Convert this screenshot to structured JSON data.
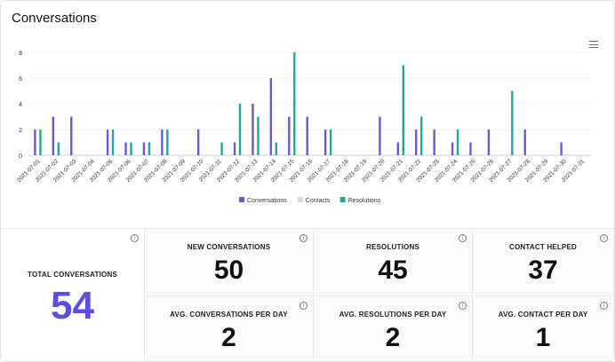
{
  "header": {
    "title": "Conversations"
  },
  "colors": {
    "conversations": "#6a5acd",
    "contacts": "#d9d9d9",
    "resolutions": "#26a69a",
    "accent": "#5a4fe0"
  },
  "chart_data": {
    "type": "bar",
    "categories": [
      "2021-07-01",
      "2021-07-02",
      "2021-07-03",
      "2021-07-04",
      "2021-07-05",
      "2021-07-06",
      "2021-07-07",
      "2021-07-08",
      "2021-07-09",
      "2021-07-10",
      "2021-07-11",
      "2021-07-12",
      "2021-07-13",
      "2021-07-14",
      "2021-07-15",
      "2021-07-16",
      "2021-07-17",
      "2021-07-18",
      "2021-07-19",
      "2021-07-20",
      "2021-07-21",
      "2021-07-22",
      "2021-07-23",
      "2021-07-24",
      "2021-07-25",
      "2021-07-26",
      "2021-07-27",
      "2021-07-28",
      "2021-07-29",
      "2021-07-30",
      "2021-07-31"
    ],
    "series": [
      {
        "name": "Conversations",
        "values": [
          2,
          3,
          3,
          0,
          2,
          1,
          1,
          2,
          0,
          2,
          0,
          1,
          4,
          6,
          3,
          3,
          2,
          0,
          0,
          3,
          1,
          2,
          2,
          1,
          1,
          2,
          0,
          2,
          0,
          1,
          0
        ]
      },
      {
        "name": "Contacts",
        "values": [
          0,
          0,
          0,
          0,
          0,
          0,
          0,
          0,
          0,
          0,
          0,
          0,
          0,
          0,
          0,
          0,
          0,
          0,
          0,
          0,
          0,
          0,
          0,
          0,
          0,
          0,
          0,
          0,
          0,
          0,
          0
        ]
      },
      {
        "name": "Resolutions",
        "values": [
          2,
          1,
          0,
          0,
          2,
          1,
          1,
          2,
          0,
          0,
          1,
          4,
          3,
          1,
          8,
          0,
          2,
          0,
          0,
          0,
          7,
          3,
          0,
          2,
          0,
          0,
          5,
          0,
          0,
          0,
          0
        ]
      }
    ],
    "y_ticks": [
      "0",
      "2",
      "4",
      "6",
      "8"
    ],
    "ylim": [
      0,
      8
    ],
    "grid": true,
    "legend_position": "bottom"
  },
  "stats": {
    "total_label": "TOTAL CONVERSATIONS",
    "total_value": "54",
    "new_label": "NEW CONVERSATIONS",
    "new_value": "50",
    "resolutions_label": "RESOLUTIONS",
    "resolutions_value": "45",
    "contact_label": "CONTACT HELPED",
    "contact_value": "37",
    "avg_conv_label": "AVG. CONVERSATIONS PER DAY",
    "avg_conv_value": "2",
    "avg_res_label": "AVG. RESOLUTIONS PER DAY",
    "avg_res_value": "2",
    "avg_contact_label": "AVG. CONTACT PER DAY",
    "avg_contact_value": "1",
    "info_glyph": "i"
  }
}
